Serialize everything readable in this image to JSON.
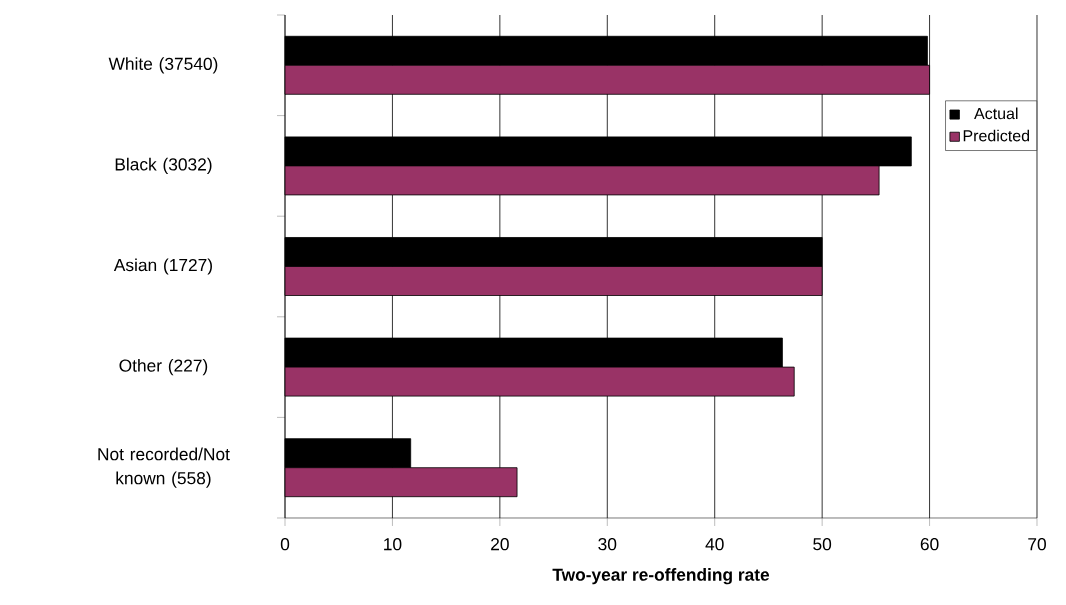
{
  "chart_data": {
    "type": "bar",
    "orientation": "horizontal",
    "xlabel": "Two-year re-offending rate",
    "categories": [
      "White (37540)",
      "Black (3032)",
      "Asian (1727)",
      "Other (227)",
      "Not recorded/Not known (558)"
    ],
    "series": [
      {
        "name": "Actual",
        "color": "#000000",
        "values": [
          59.8,
          58.3,
          50.0,
          46.3,
          11.7
        ]
      },
      {
        "name": "Predicted",
        "color": "#993366",
        "values": [
          60.0,
          55.3,
          50.0,
          47.4,
          21.6
        ]
      }
    ],
    "xlim": [
      0,
      70
    ],
    "xticks": [
      0,
      10,
      20,
      30,
      40,
      50,
      60,
      70
    ],
    "grid": "x",
    "legend": "right"
  }
}
